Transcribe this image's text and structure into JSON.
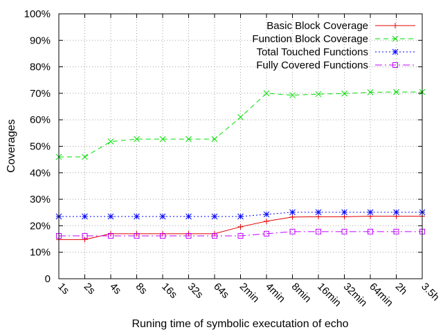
{
  "chart_data": {
    "type": "line",
    "xlabel": "Runing time of symbolic executation of echo",
    "ylabel": "Coverages",
    "ylim": [
      0,
      100
    ],
    "yticks": [
      "0",
      "10%",
      "20%",
      "30%",
      "40%",
      "50%",
      "60%",
      "70%",
      "80%",
      "90%",
      "100%"
    ],
    "categories": [
      "1s",
      "2s",
      "4s",
      "8s",
      "16s",
      "32s",
      "64s",
      "2min",
      "4min",
      "8min",
      "16min",
      "32min",
      "64min",
      "2h",
      "3.5h"
    ],
    "grid": true,
    "legend_position": "top-right",
    "series": [
      {
        "name": "Basic Block Coverage",
        "color": "#e00000",
        "marker": "plus",
        "dash": "solid",
        "values": [
          14.8,
          14.8,
          17.0,
          17.0,
          17.0,
          17.0,
          17.0,
          19.6,
          21.7,
          23.3,
          23.4,
          23.4,
          23.6,
          23.6,
          23.6
        ]
      },
      {
        "name": "Function Block Coverage",
        "color": "#00e000",
        "marker": "cross",
        "dash": "dashed",
        "values": [
          46.0,
          46.0,
          51.8,
          52.7,
          52.7,
          52.7,
          52.7,
          61.0,
          70.0,
          69.3,
          69.7,
          69.9,
          70.4,
          70.5,
          70.5
        ]
      },
      {
        "name": "Total Touched Functions",
        "color": "#0000ff",
        "marker": "star",
        "dash": "dotted",
        "values": [
          23.5,
          23.5,
          23.5,
          23.5,
          23.5,
          23.5,
          23.5,
          23.5,
          24.3,
          25.1,
          25.1,
          25.1,
          25.1,
          25.1,
          25.1
        ]
      },
      {
        "name": "Fully Covered Functions",
        "color": "#c000ff",
        "marker": "square",
        "dash": "dashdot",
        "values": [
          16.2,
          16.2,
          16.2,
          16.2,
          16.2,
          16.2,
          16.2,
          16.2,
          17.0,
          17.8,
          17.8,
          17.8,
          17.8,
          17.8,
          17.8
        ]
      }
    ]
  }
}
